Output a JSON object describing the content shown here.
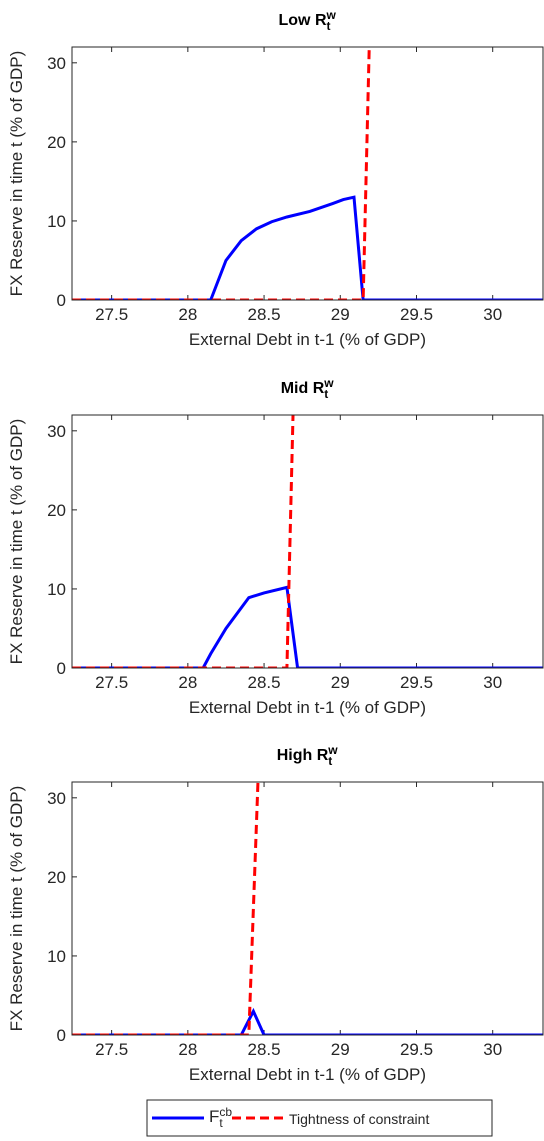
{
  "chart_data": [
    {
      "type": "line",
      "title": "Low R",
      "title_superscript": "w",
      "title_subscript": "t",
      "xlabel": "External Debt in t-1 (% of GDP)",
      "ylabel": "FX Reserve in time t (% of GDP)",
      "xlim": [
        27.24,
        30.33
      ],
      "ylim": [
        0,
        32
      ],
      "xticks": [
        27.5,
        28,
        28.5,
        29,
        29.5,
        30
      ],
      "yticks": [
        0,
        10,
        20,
        30
      ],
      "series": [
        {
          "x": [
            27.24,
            28.15,
            28.25,
            28.35,
            28.45,
            28.55,
            28.65,
            28.8,
            28.95,
            29.02,
            29.09,
            29.15,
            30.33
          ],
          "values": [
            0,
            0,
            5,
            7.5,
            9,
            9.9,
            10.5,
            11.2,
            12.2,
            12.7,
            13,
            0,
            0
          ]
        },
        {
          "x": [
            27.24,
            29.15,
            29.19
          ],
          "values": [
            0,
            0,
            32
          ]
        }
      ]
    },
    {
      "type": "line",
      "title": "Mid R",
      "title_superscript": "w",
      "title_subscript": "t",
      "xlabel": "External Debt in t-1 (% of GDP)",
      "ylabel": "FX Reserve in time t (% of GDP)",
      "xlim": [
        27.24,
        30.33
      ],
      "ylim": [
        0,
        32
      ],
      "xticks": [
        27.5,
        28,
        28.5,
        29,
        29.5,
        30
      ],
      "yticks": [
        0,
        10,
        20,
        30
      ],
      "series": [
        {
          "x": [
            27.24,
            28.1,
            28.15,
            28.25,
            28.4,
            28.5,
            28.65,
            28.72,
            30.33
          ],
          "values": [
            0,
            0,
            1.8,
            5,
            8.9,
            9.5,
            10.2,
            0,
            0
          ]
        },
        {
          "x": [
            27.24,
            28.65,
            28.69
          ],
          "values": [
            0,
            0,
            32
          ]
        }
      ]
    },
    {
      "type": "line",
      "title": "High R",
      "title_superscript": "w",
      "title_subscript": "t",
      "xlabel": "External Debt in t-1 (% of GDP)",
      "ylabel": "FX Reserve in time t (% of GDP)",
      "xlim": [
        27.24,
        30.33
      ],
      "ylim": [
        0,
        32
      ],
      "xticks": [
        27.5,
        28,
        28.5,
        29,
        29.5,
        30
      ],
      "yticks": [
        0,
        10,
        20,
        30
      ],
      "series": [
        {
          "x": [
            27.24,
            28.35,
            28.43,
            28.5,
            30.33
          ],
          "values": [
            0,
            0,
            3,
            0,
            0
          ]
        },
        {
          "x": [
            27.24,
            28.4,
            28.46
          ],
          "values": [
            0,
            0,
            32
          ]
        }
      ]
    }
  ],
  "legend": [
    {
      "name": "F",
      "superscript": "cb",
      "subscript": "t",
      "color": "#0000ff",
      "dash": false
    },
    {
      "name": "Tightness of constraint",
      "color": "#ff0000",
      "dash": true
    }
  ]
}
